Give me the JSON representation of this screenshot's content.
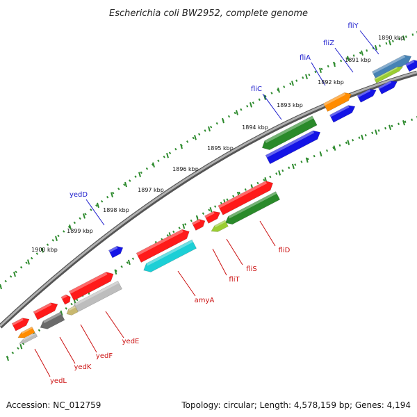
{
  "title": "Escherichia coli BW2952, complete genome",
  "footer": {
    "accession": "Accession: NC_012759",
    "topology": "Topology: circular; Length: 4,578,159 bp; Genes: 4,194"
  },
  "colors": {
    "backbone": "#8a8a8a",
    "tick": "#2e8b2e",
    "label_forward": "#1a1acc",
    "label_reverse": "#cc1111",
    "red": "#ff1a1a",
    "blue": "#1414e6",
    "green": "#2a8a2a",
    "orange": "#ff8c00",
    "cyan": "#1ccfd6",
    "grey": "#bdbdbd",
    "darkgrey": "#6b6b6b",
    "olive": "#c8b870",
    "lime": "#9acd32",
    "steelblue": "#4682b4"
  },
  "tick_labels": [
    "1890 kbp",
    "1891 kbp",
    "1892 kbp",
    "1893 kbp",
    "1894 kbp",
    "1895 kbp",
    "1896 kbp",
    "1897 kbp",
    "1898 kbp",
    "1899 kbp",
    "1900 kbp"
  ],
  "gene_labels": {
    "forward": [
      "fliY",
      "fliZ",
      "fliA",
      "fliC",
      "yedD"
    ],
    "reverse": [
      "fliD",
      "fliS",
      "fliT",
      "amyA",
      "yedE",
      "yedF",
      "yedK",
      "yedL"
    ]
  }
}
